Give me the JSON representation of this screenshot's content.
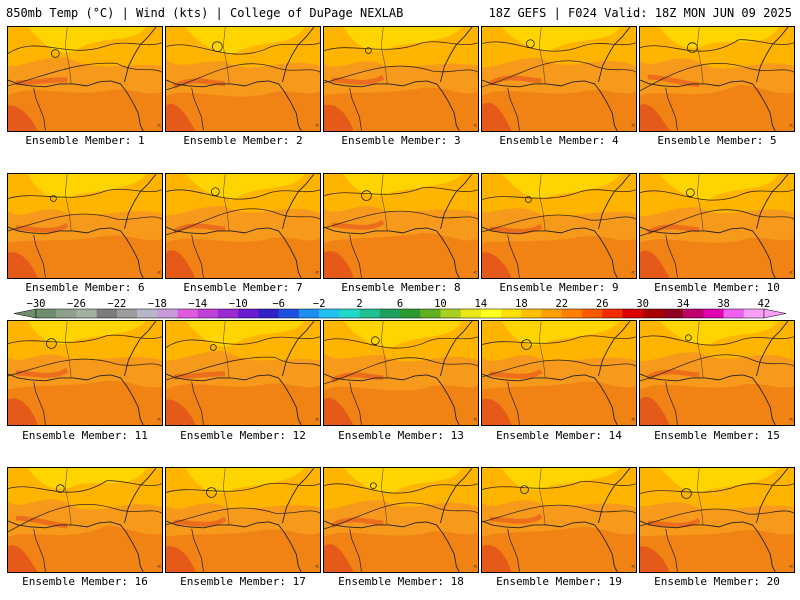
{
  "header": {
    "left_text": "850mb Temp (°C) | Wind (kts) | College of DuPage NEXLAB",
    "right_text": "18Z GEFS | F024 Valid: 18Z MON JUN 09 2025"
  },
  "panels": [
    {
      "label": "Ensemble Member: 1"
    },
    {
      "label": "Ensemble Member: 2"
    },
    {
      "label": "Ensemble Member: 3"
    },
    {
      "label": "Ensemble Member: 4"
    },
    {
      "label": "Ensemble Member: 5"
    },
    {
      "label": "Ensemble Member: 6"
    },
    {
      "label": "Ensemble Member: 7"
    },
    {
      "label": "Ensemble Member: 8"
    },
    {
      "label": "Ensemble Member: 9"
    },
    {
      "label": "Ensemble Member: 10"
    },
    {
      "label": "Ensemble Member: 11"
    },
    {
      "label": "Ensemble Member: 12"
    },
    {
      "label": "Ensemble Member: 13"
    },
    {
      "label": "Ensemble Member: 14"
    },
    {
      "label": "Ensemble Member: 15"
    },
    {
      "label": "Ensemble Member: 16"
    },
    {
      "label": "Ensemble Member: 17"
    },
    {
      "label": "Ensemble Member: 18"
    },
    {
      "label": "Ensemble Member: 19"
    },
    {
      "label": "Ensemble Member: 20"
    }
  ],
  "colorbar": {
    "labels": [
      "−30",
      "−26",
      "−22",
      "−18",
      "−14",
      "−10",
      "−6",
      "−2",
      "2",
      "6",
      "10",
      "14",
      "18",
      "22",
      "26",
      "30",
      "34",
      "38",
      "42"
    ],
    "colors": [
      "#6f8e6f",
      "#8ea08c",
      "#a4b0a2",
      "#7b7b7b",
      "#9c9c9c",
      "#b7b7c8",
      "#c89ad8",
      "#e05ae0",
      "#c040d8",
      "#9a2ad0",
      "#6a1ad0",
      "#3020c8",
      "#1e50e0",
      "#1e8ef0",
      "#22c0f0",
      "#22d8c8",
      "#20c090",
      "#1fa060",
      "#2a9a30",
      "#60b020",
      "#a8d020",
      "#e8e818",
      "#ffff20",
      "#ffe000",
      "#ffc000",
      "#ffa000",
      "#ff8000",
      "#ff5a00",
      "#f02c00",
      "#d80000",
      "#a80000",
      "#900020",
      "#c0006a",
      "#e000b0",
      "#f060f0",
      "#f8a0f8"
    ]
  },
  "field_colors": {
    "yellow": "#ffd700",
    "light_orange": "#ffb400",
    "orange": "#f79a1c",
    "dark_orange": "#ef7a12",
    "red_orange": "#e4501a"
  }
}
